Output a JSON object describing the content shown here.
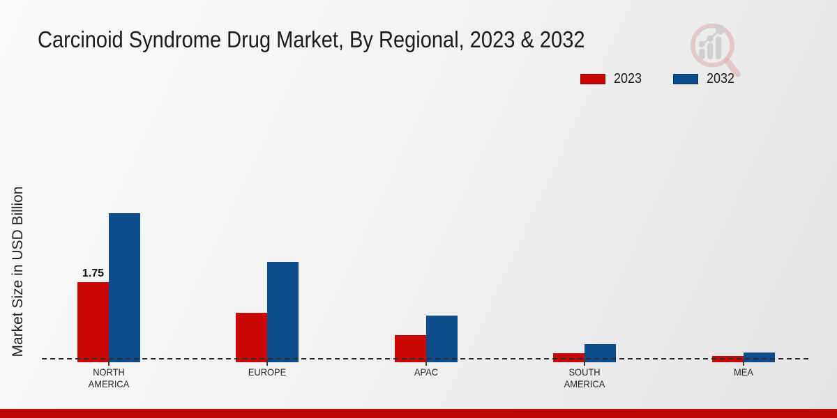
{
  "title": "Carcinoid Syndrome Drug Market, By Regional, 2023 & 2032",
  "ylabel": "Market Size in USD Billion",
  "legend": [
    {
      "label": "2023",
      "color": "#c90707"
    },
    {
      "label": "2032",
      "color": "#0e4c8c"
    }
  ],
  "watermark_icon": "magnifier-bar-chart-logo",
  "footer_bar_color": "#c00505",
  "colors": {
    "series_2023": "#c90707",
    "series_2032": "#0e4c8c",
    "baseline_dash": "#2c2c2c",
    "background_start": "#fbfbfb",
    "background_end": "#e4e4e4"
  },
  "chart_data": {
    "type": "bar",
    "title": "Carcinoid Syndrome Drug Market, By Regional, 2023 & 2032",
    "xlabel": "",
    "ylabel": "Market Size in USD Billion",
    "categories": [
      "NORTH AMERICA",
      "EUROPE",
      "APAC",
      "SOUTH AMERICA",
      "MEA"
    ],
    "series": [
      {
        "name": "2023",
        "color": "#c90707",
        "values": [
          1.75,
          1.05,
          0.54,
          0.12,
          0.07
        ]
      },
      {
        "name": "2032",
        "color": "#0e4c8c",
        "values": [
          3.32,
          2.21,
          0.99,
          0.33,
          0.14
        ]
      }
    ],
    "annotations": [
      {
        "category": "NORTH AMERICA",
        "series": "2023",
        "text": "1.75"
      }
    ],
    "legend_position": "top-right",
    "grid": false,
    "y_axis_ticks_visible": false,
    "baseline_style": "dashed"
  }
}
